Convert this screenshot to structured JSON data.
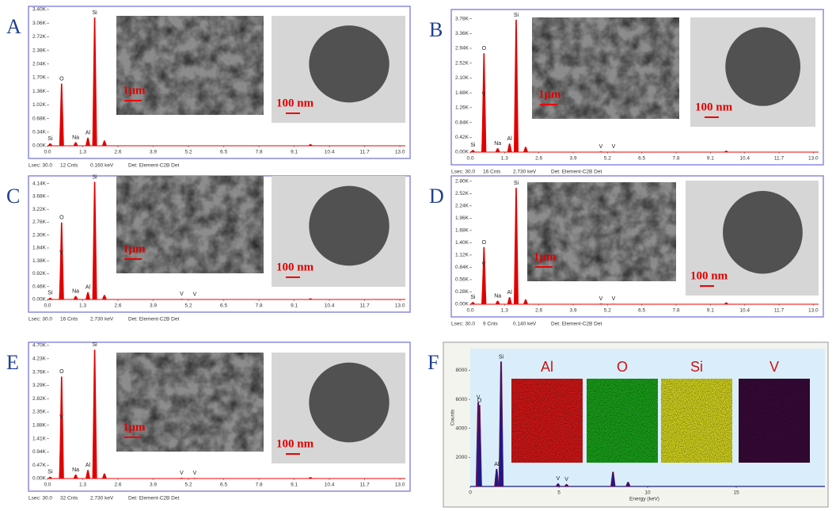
{
  "eds_xlim": [
    0,
    13.2
  ],
  "eds_xticks": [
    {
      "value": 0,
      "label": "0.0"
    },
    1.3,
    2.6,
    3.9,
    5.2,
    6.5,
    7.8,
    9.1,
    10.4,
    11.7,
    {
      "value": 13,
      "label": "13.0"
    }
  ],
  "panels": [
    {
      "label": "A",
      "sem_scale": "1μm",
      "tem_scale": "100 nm",
      "footer": [
        "Lsec: 30.0",
        "12 Cnts",
        "0.160 keV",
        "Det: Element-C2B Det"
      ],
      "ylim": [
        0,
        3400
      ],
      "yticks": [
        {
          "value": 0,
          "label": "0.00K"
        },
        {
          "value": 340,
          "label": "0.34K"
        },
        {
          "value": 680,
          "label": "0.68K"
        },
        {
          "value": 1020,
          "label": "1.02K"
        },
        {
          "value": 1360,
          "label": "1.36K"
        },
        {
          "value": 1700,
          "label": "1.70K"
        },
        {
          "value": 2040,
          "label": "2.04K"
        },
        {
          "value": 2380,
          "label": "2.38K"
        },
        {
          "value": 2720,
          "label": "2.72K"
        },
        {
          "value": 3060,
          "label": "3.06K"
        },
        {
          "value": 3400,
          "label": "3.40K"
        }
      ],
      "peaks": [
        {
          "element": "Si",
          "keV": 0.1,
          "counts": 60
        },
        {
          "element": "O",
          "keV": 0.52,
          "counts": 1550
        },
        {
          "element": "Na",
          "keV": 1.04,
          "counts": 90
        },
        {
          "element": "Al",
          "keV": 1.49,
          "counts": 200
        },
        {
          "element": "Si",
          "keV": 1.74,
          "counts": 3200
        },
        {
          "element": null,
          "keV": 2.1,
          "counts": 130
        },
        {
          "element": null,
          "keV": 9.7,
          "counts": 40
        }
      ]
    },
    {
      "label": "B",
      "sem_scale": "1μm",
      "tem_scale": "100 nm",
      "footer": [
        "Lsec: 30.0",
        "16 Cnts",
        "2.730 keV",
        "Det: Element-C2B Det"
      ],
      "ylim": [
        0,
        3950
      ],
      "yticks": [
        {
          "value": 0,
          "label": "0.00K"
        },
        {
          "value": 420,
          "label": "0.42K"
        },
        {
          "value": 840,
          "label": "0.84K"
        },
        {
          "value": 1260,
          "label": "1.26K"
        },
        {
          "value": 1680,
          "label": "1.68K"
        },
        {
          "value": 2100,
          "label": "2.10K"
        },
        {
          "value": 2520,
          "label": "2.52K"
        },
        {
          "value": 2940,
          "label": "2.94K"
        },
        {
          "value": 3360,
          "label": "3.36K"
        },
        {
          "value": 3780,
          "label": "3.78K"
        }
      ],
      "peaks": [
        {
          "element": "Si",
          "keV": 0.1,
          "counts": 60
        },
        {
          "element": "O",
          "keV": 0.52,
          "counts": 2800
        },
        {
          "element": "V",
          "keV": 0.51,
          "counts": 1500
        },
        {
          "element": "Na",
          "keV": 1.04,
          "counts": 110
        },
        {
          "element": "Al",
          "keV": 1.49,
          "counts": 240
        },
        {
          "element": "Si",
          "keV": 1.74,
          "counts": 3750
        },
        {
          "element": null,
          "keV": 2.1,
          "counts": 150
        },
        {
          "element": "V",
          "keV": 4.95,
          "counts": 20
        },
        {
          "element": "V",
          "keV": 5.43,
          "counts": 15
        },
        {
          "element": null,
          "keV": 9.7,
          "counts": 40
        }
      ]
    },
    {
      "label": "C",
      "sem_scale": "1μm",
      "tem_scale": "100 nm",
      "footer": [
        "Lsec: 30.0",
        "16 Cnts",
        "2.730 keV",
        "Det: Element-C2B Det"
      ],
      "ylim": [
        0,
        4300
      ],
      "yticks": [
        {
          "value": 0,
          "label": "0.00K"
        },
        {
          "value": 460,
          "label": "0.46K"
        },
        {
          "value": 920,
          "label": "0.92K"
        },
        {
          "value": 1380,
          "label": "1.38K"
        },
        {
          "value": 1840,
          "label": "1.84K"
        },
        {
          "value": 2300,
          "label": "2.30K"
        },
        {
          "value": 2760,
          "label": "2.76K"
        },
        {
          "value": 3220,
          "label": "3.22K"
        },
        {
          "value": 3680,
          "label": "3.68K"
        },
        {
          "value": 4140,
          "label": "4.14K"
        }
      ],
      "peaks": [
        {
          "element": "Si",
          "keV": 0.1,
          "counts": 60
        },
        {
          "element": "O",
          "keV": 0.52,
          "counts": 2750
        },
        {
          "element": "V",
          "keV": 0.51,
          "counts": 1500
        },
        {
          "element": "Na",
          "keV": 1.04,
          "counts": 120
        },
        {
          "element": "Al",
          "keV": 1.49,
          "counts": 260
        },
        {
          "element": "Si",
          "keV": 1.74,
          "counts": 4200
        },
        {
          "element": null,
          "keV": 2.1,
          "counts": 160
        },
        {
          "element": "V",
          "keV": 4.95,
          "counts": 20
        },
        {
          "element": "V",
          "keV": 5.43,
          "counts": 15
        },
        {
          "element": null,
          "keV": 9.7,
          "counts": 40
        }
      ]
    },
    {
      "label": "D",
      "sem_scale": "1μm",
      "tem_scale": "100 nm",
      "footer": [
        "Lsec: 30.0",
        "9 Cnts",
        "0.140 keV",
        "Det: Element-C2B Det"
      ],
      "ylim": [
        0,
        2850
      ],
      "yticks": [
        {
          "value": 0,
          "label": "0.00K"
        },
        {
          "value": 280,
          "label": "0.28K"
        },
        {
          "value": 560,
          "label": "0.56K"
        },
        {
          "value": 840,
          "label": "0.84K"
        },
        {
          "value": 1120,
          "label": "1.12K"
        },
        {
          "value": 1400,
          "label": "1.40K"
        },
        {
          "value": 1680,
          "label": "1.68K"
        },
        {
          "value": 1960,
          "label": "1.96K"
        },
        {
          "value": 2240,
          "label": "2.24K"
        },
        {
          "value": 2520,
          "label": "2.52K"
        },
        {
          "value": 2800,
          "label": "2.80K"
        }
      ],
      "peaks": [
        {
          "element": "Si",
          "keV": 0.1,
          "counts": 50
        },
        {
          "element": "O",
          "keV": 0.52,
          "counts": 1300
        },
        {
          "element": "V",
          "keV": 0.51,
          "counts": 800
        },
        {
          "element": "Na",
          "keV": 1.04,
          "counts": 80
        },
        {
          "element": "Al",
          "keV": 1.49,
          "counts": 160
        },
        {
          "element": "Si",
          "keV": 1.74,
          "counts": 2650
        },
        {
          "element": null,
          "keV": 2.1,
          "counts": 110
        },
        {
          "element": "V",
          "keV": 4.95,
          "counts": 15
        },
        {
          "element": "V",
          "keV": 5.43,
          "counts": 12
        },
        {
          "element": null,
          "keV": 9.7,
          "counts": 40
        }
      ]
    },
    {
      "label": "E",
      "sem_scale": "1μm",
      "tem_scale": "100 nm",
      "footer": [
        "Lsec: 30.0",
        "32 Cnts",
        "2.730 keV",
        "Det: Element-C2B Det"
      ],
      "ylim": [
        0,
        4700
      ],
      "yticks": [
        {
          "value": 0,
          "label": "0.00K"
        },
        {
          "value": 470,
          "label": "0.47K"
        },
        {
          "value": 940,
          "label": "0.94K"
        },
        {
          "value": 1410,
          "label": "1.41K"
        },
        {
          "value": 1880,
          "label": "1.88K"
        },
        {
          "value": 2350,
          "label": "2.35K"
        },
        {
          "value": 2820,
          "label": "2.82K"
        },
        {
          "value": 3290,
          "label": "3.29K"
        },
        {
          "value": 3760,
          "label": "3.76K"
        },
        {
          "value": 4230,
          "label": "4.23K"
        },
        {
          "value": 4700,
          "label": "4.70K"
        }
      ],
      "peaks": [
        {
          "element": "Si",
          "keV": 0.1,
          "counts": 60
        },
        {
          "element": "O",
          "keV": 0.52,
          "counts": 3600
        },
        {
          "element": "V",
          "keV": 0.51,
          "counts": 2000
        },
        {
          "element": "Na",
          "keV": 1.04,
          "counts": 140
        },
        {
          "element": "Al",
          "keV": 1.49,
          "counts": 300
        },
        {
          "element": "Si",
          "keV": 1.74,
          "counts": 4550
        },
        {
          "element": null,
          "keV": 2.1,
          "counts": 180
        },
        {
          "element": "V",
          "keV": 4.95,
          "counts": 25
        },
        {
          "element": "V",
          "keV": 5.43,
          "counts": 20
        },
        {
          "element": null,
          "keV": 9.7,
          "counts": 50
        }
      ]
    }
  ],
  "panel_f": {
    "label": "F",
    "x_label": "Energy (keV)",
    "y_label": "Counts",
    "xlim": [
      0,
      20
    ],
    "ylim": [
      0,
      9500
    ],
    "xticks": [
      0,
      5,
      10,
      15
    ],
    "yticks": [
      2000,
      4000,
      6000,
      8000
    ],
    "peaks": [
      {
        "element": "V",
        "keV": 0.45,
        "counts": 5800
      },
      {
        "element": "O",
        "keV": 0.52,
        "counts": 5600
      },
      {
        "element": "Al",
        "keV": 1.49,
        "counts": 1200
      },
      {
        "element": "Si",
        "keV": 1.74,
        "counts": 8600
      },
      {
        "element": "V",
        "keV": 4.95,
        "counts": 200
      },
      {
        "element": "V",
        "keV": 5.43,
        "counts": 150
      },
      {
        "element": null,
        "keV": 8.05,
        "counts": 1000
      },
      {
        "element": null,
        "keV": 8.9,
        "counts": 300
      }
    ],
    "maps": [
      {
        "label": "Al",
        "color": "#d81818"
      },
      {
        "label": "O",
        "color": "#1aa51a"
      },
      {
        "label": "Si",
        "color": "#d8d820"
      },
      {
        "label": "V",
        "color": "#3a0a3a"
      }
    ]
  }
}
